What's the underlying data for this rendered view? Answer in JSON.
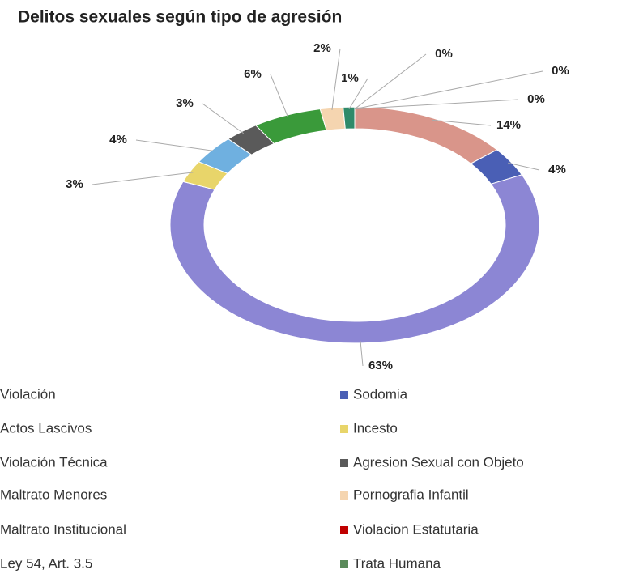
{
  "chart_data": {
    "type": "donut",
    "title": "Delitos sexuales según tipo de agresión",
    "categories": [
      "Violación",
      "Sodomia",
      "Actos Lascivos",
      "Incesto",
      "Violación Técnica",
      "Agresion Sexual con Objeto",
      "Maltrato Menores",
      "Pornografia Infantil",
      "Maltrato Institucional",
      "Violacion Estatutaria",
      "Ley 54, Art. 3.5",
      "Trata Humana"
    ],
    "values": [
      14,
      4,
      63,
      3,
      4,
      3,
      6,
      2,
      1,
      0,
      0,
      0
    ],
    "value_labels": [
      "14%",
      "4%",
      "63%",
      "3%",
      "4%",
      "3%",
      "6%",
      "2%",
      "1%",
      "0%",
      "0%",
      "0%"
    ],
    "colors": [
      "#d9958a",
      "#4a5fb5",
      "#8c86d4",
      "#e8d56a",
      "#6fb0e0",
      "#5a5a5a",
      "#3a9a3a",
      "#f5d5b0",
      "#2f8a6a",
      "#c00000",
      "#999999",
      "#5a8a5a"
    ]
  }
}
